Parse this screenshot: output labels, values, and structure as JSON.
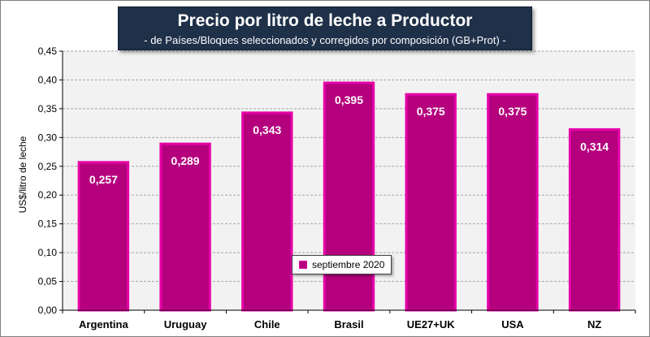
{
  "chart_data": {
    "type": "bar",
    "title": "Precio por litro de leche a Productor",
    "subtitle": "-  de Países/Bloques seleccionados y corregidos por composición (GB+Prot) -",
    "ylabel": "US$/litro de leche",
    "xlabel": "",
    "categories": [
      "Argentina",
      "Uruguay",
      "Chile",
      "Brasil",
      "UE27+UK",
      "USA",
      "NZ"
    ],
    "series": [
      {
        "name": "septiembre 2020",
        "values": [
          0.257,
          0.289,
          0.343,
          0.395,
          0.375,
          0.375,
          0.314
        ],
        "labels": [
          "0,257",
          "0,289",
          "0,343",
          "0,395",
          "0,375",
          "0,375",
          "0,314"
        ]
      }
    ],
    "ylim": [
      0,
      0.45
    ],
    "yticks": [
      0,
      0.05,
      0.1,
      0.15,
      0.2,
      0.25,
      0.3,
      0.35,
      0.4,
      0.45
    ],
    "ytick_labels": [
      "0,00",
      "0,05",
      "0,10",
      "0,15",
      "0,20",
      "0,25",
      "0,30",
      "0,35",
      "0,40",
      "0,45"
    ],
    "grid": true,
    "legend_position": "bottom-center",
    "colors": {
      "bar_fill": "#b4007d",
      "bar_border": "#e600a8",
      "plot_background": "#f2f2f2",
      "title_background": "#1f3049"
    }
  }
}
